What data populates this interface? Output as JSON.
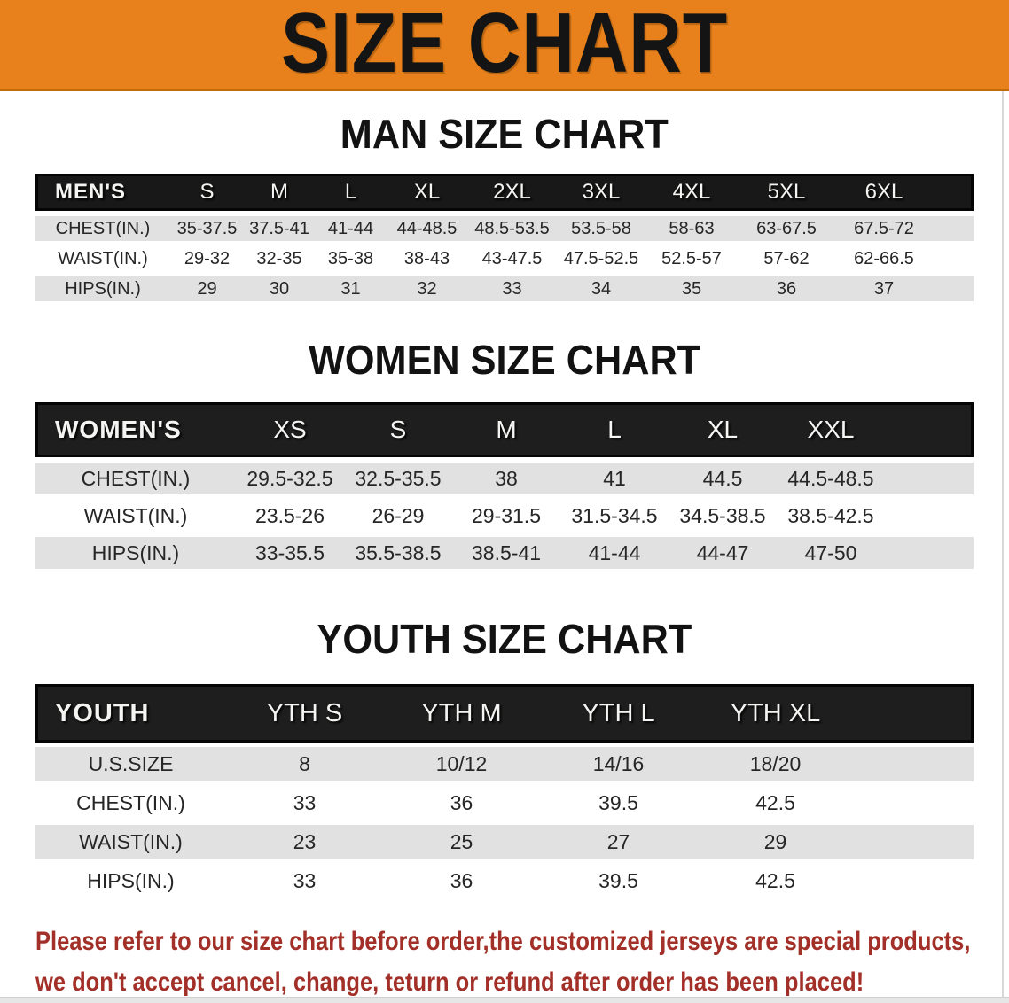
{
  "banner": {
    "title": "SIZE CHART"
  },
  "colors": {
    "banner_bg": "#E8811B",
    "banner_edge": "#C36A10",
    "band_bg": "#181818",
    "row_gray": "#E1E1E1",
    "row_text": "#262626",
    "footer_red": "#A33028"
  },
  "sections": [
    {
      "heading": "MAN SIZE CHART",
      "table": {
        "header_label": "MEN'S",
        "sizes": [
          "S",
          "M",
          "L",
          "XL",
          "2XL",
          "3XL",
          "4XL",
          "5XL",
          "6XL"
        ],
        "rows": [
          {
            "label": "CHEST(IN.)",
            "values": [
              "35-37.5",
              "37.5-41",
              "41-44",
              "44-48.5",
              "48.5-53.5",
              "53.5-58",
              "58-63",
              "63-67.5",
              "67.5-72"
            ]
          },
          {
            "label": "WAIST(IN.)",
            "values": [
              "29-32",
              "32-35",
              "35-38",
              "38-43",
              "43-47.5",
              "47.5-52.5",
              "52.5-57",
              "57-62",
              "62-66.5"
            ]
          },
          {
            "label": "HIPS(IN.)",
            "values": [
              "29",
              "30",
              "31",
              "32",
              "33",
              "34",
              "35",
              "36",
              "37"
            ]
          }
        ]
      }
    },
    {
      "heading": "WOMEN SIZE CHART",
      "table": {
        "header_label": "WOMEN'S",
        "sizes": [
          "XS",
          "S",
          "M",
          "L",
          "XL",
          "XXL"
        ],
        "rows": [
          {
            "label": "CHEST(IN.)",
            "values": [
              "29.5-32.5",
              "32.5-35.5",
              "38",
              "41",
              "44.5",
              "44.5-48.5"
            ]
          },
          {
            "label": "WAIST(IN.)",
            "values": [
              "23.5-26",
              "26-29",
              "29-31.5",
              "31.5-34.5",
              "34.5-38.5",
              "38.5-42.5"
            ]
          },
          {
            "label": "HIPS(IN.)",
            "values": [
              "33-35.5",
              "35.5-38.5",
              "38.5-41",
              "41-44",
              "44-47",
              "47-50"
            ]
          }
        ]
      }
    },
    {
      "heading": "YOUTH SIZE CHART",
      "table": {
        "header_label": "YOUTH",
        "sizes": [
          "YTH S",
          "YTH M",
          "YTH L",
          "YTH XL"
        ],
        "rows": [
          {
            "label": "U.S.SIZE",
            "values": [
              "8",
              "10/12",
              "14/16",
              "18/20"
            ]
          },
          {
            "label": "CHEST(IN.)",
            "values": [
              "33",
              "36",
              "39.5",
              "42.5"
            ]
          },
          {
            "label": "WAIST(IN.)",
            "values": [
              "23",
              "25",
              "27",
              "29"
            ]
          },
          {
            "label": "HIPS(IN.)",
            "values": [
              "33",
              "36",
              "39.5",
              "42.5"
            ]
          }
        ]
      }
    }
  ],
  "footer": {
    "line1": "Please refer to our size chart before order,the customized jerseys are special products,",
    "line2": "we don't accept cancel, change, teturn or refund after order has been placed!"
  }
}
